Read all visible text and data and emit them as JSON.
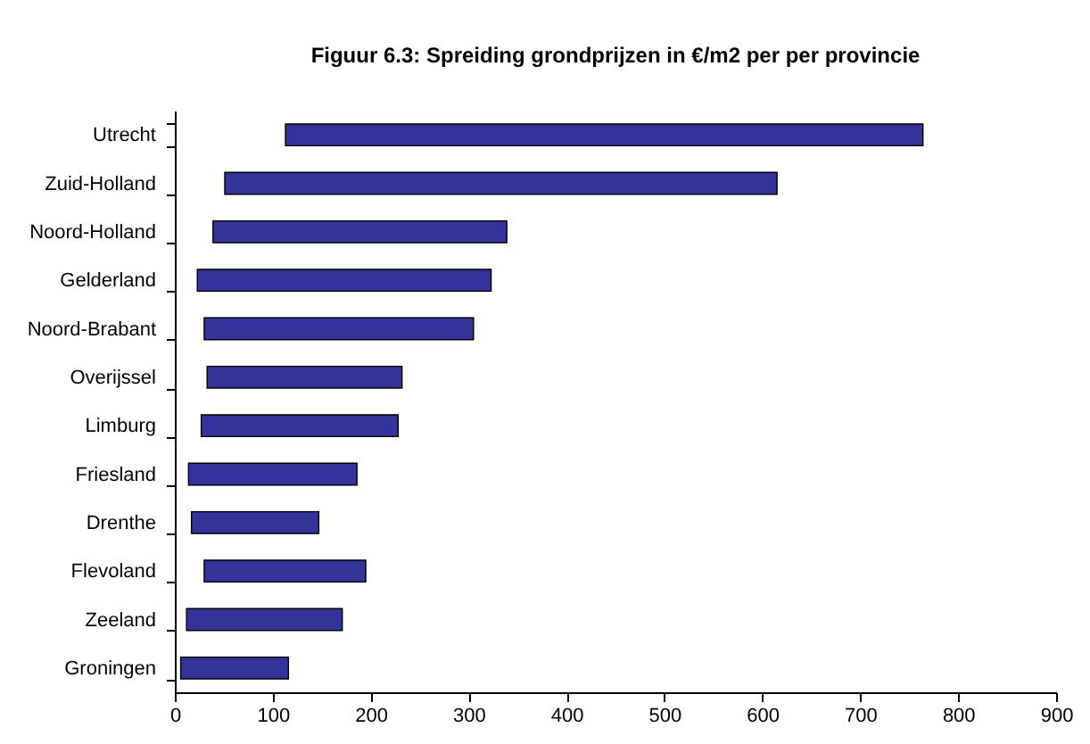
{
  "chart_data": {
    "type": "bar",
    "orientation": "horizontal",
    "title": "Figuur 6.3: Spreiding grondprijzen in €/m2 per per provincie",
    "categories": [
      "Utrecht",
      "Zuid-Holland",
      "Noord-Holland",
      "Gelderland",
      "Noord-Brabant",
      "Overijssel",
      "Limburg",
      "Friesland",
      "Drenthe",
      "Flevoland",
      "Zeeland",
      "Groningen"
    ],
    "base": [
      113,
      51,
      39,
      23,
      30,
      33,
      27,
      14,
      17,
      30,
      12,
      6
    ],
    "values": [
      651,
      564,
      300,
      300,
      275,
      199,
      201,
      172,
      130,
      165,
      159,
      110
    ],
    "color": "#333399",
    "xlim": [
      0,
      900
    ],
    "xticks": [
      0,
      100,
      200,
      300,
      400,
      500,
      600,
      700,
      800,
      900
    ],
    "grid": false
  }
}
